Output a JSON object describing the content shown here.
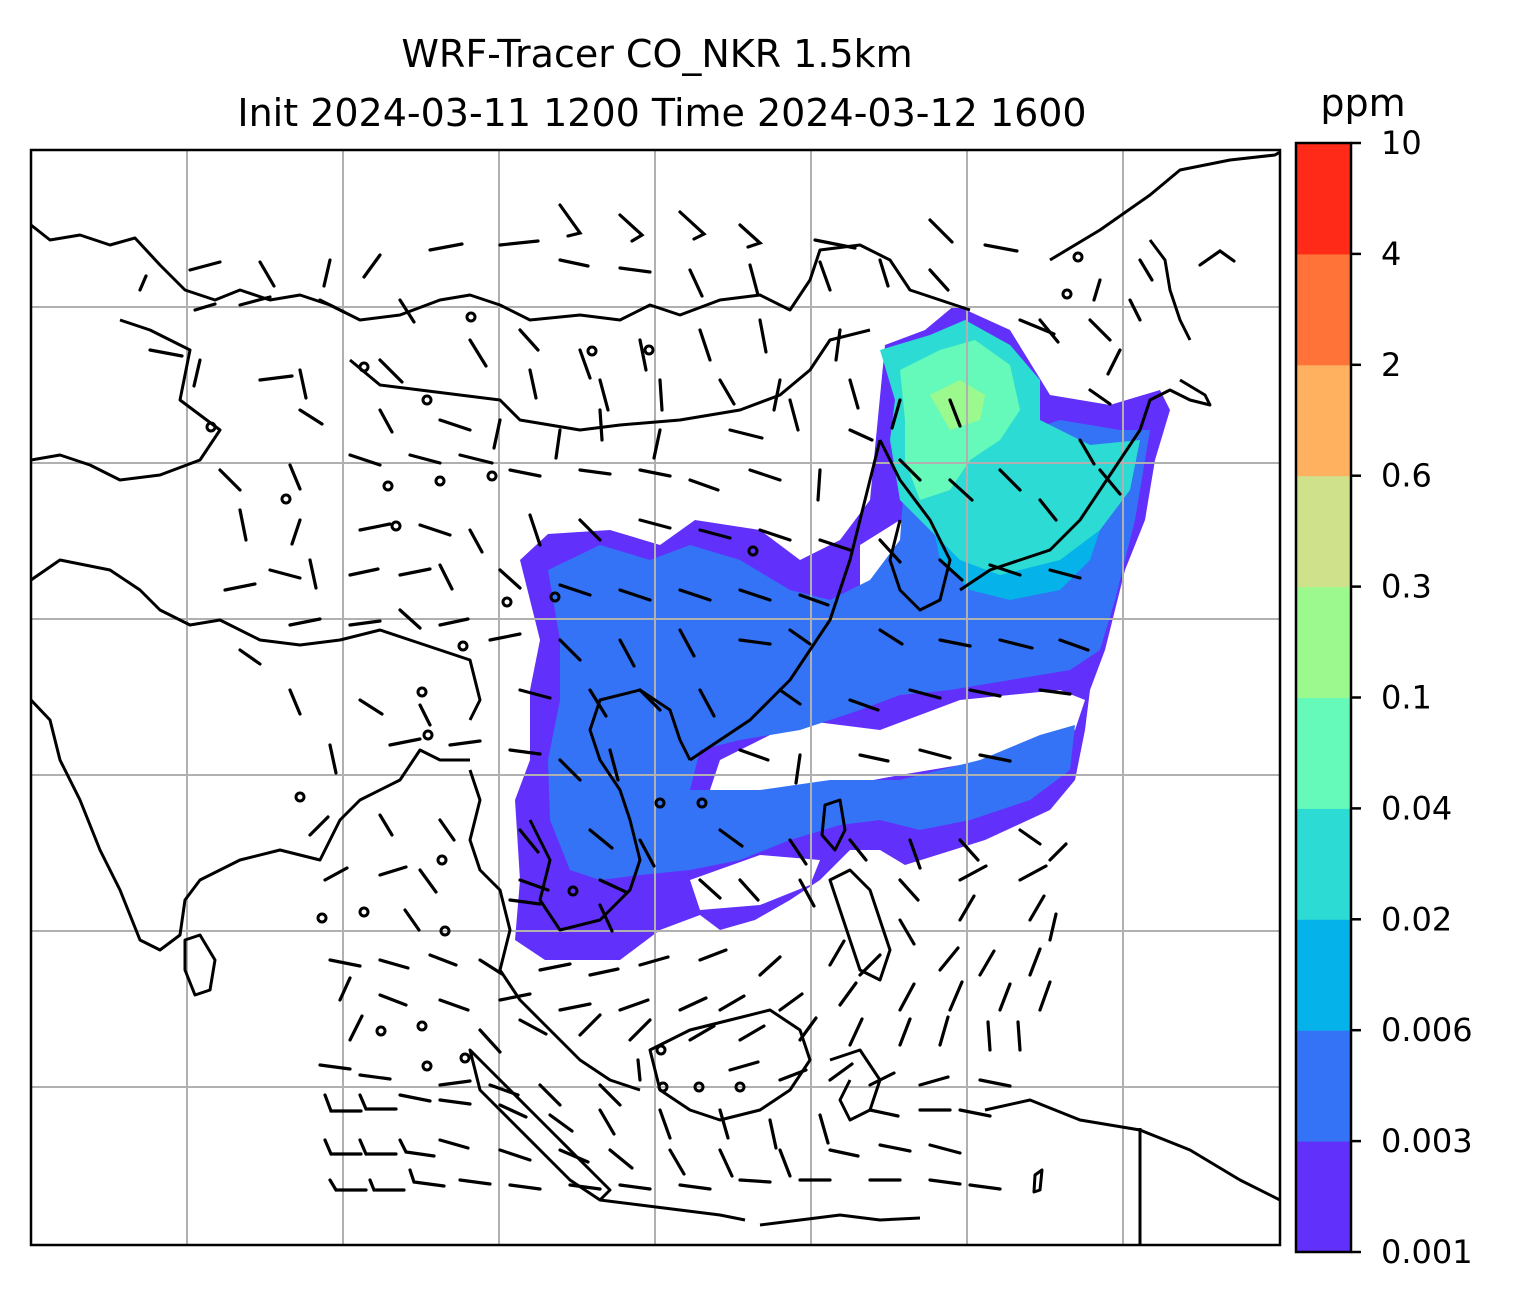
{
  "title": {
    "line1": "WRF-Tracer CO_NKR 1.5km",
    "line2": "Init 2024-03-11 1200 Time 2024-03-12 1600"
  },
  "colorbar": {
    "unit": "ppm",
    "levels": [
      "0.001",
      "0.003",
      "0.006",
      "0.02",
      "0.04",
      "0.1",
      "0.3",
      "0.6",
      "2",
      "4",
      "10"
    ],
    "colors": [
      "#6230fb",
      "#3473f5",
      "#05b2ea",
      "#2cdbd3",
      "#66faba",
      "#9bf98e",
      "#cfe18a",
      "#ffb160",
      "#ff7238",
      "#ff2b18"
    ]
  },
  "map": {
    "gridlines": true,
    "frame_color": "#000000",
    "grid_color": "#b0b0b0",
    "coastline_color": "#000000",
    "barb_color": "#000000"
  }
}
